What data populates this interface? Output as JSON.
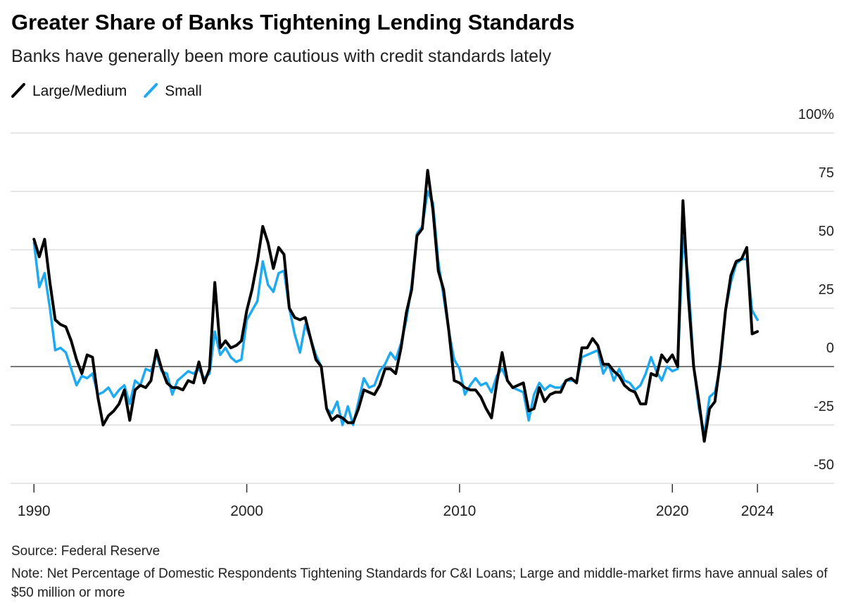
{
  "chart_data": {
    "type": "line",
    "title": "Greater Share of Banks Tightening Lending Standards",
    "subtitle": "Banks have generally been more cautious with credit standards lately",
    "source": "Source: Federal Reserve",
    "note": "Note: Net Percentage of Domestic Respondents Tightening Standards for C&I Loans; Large and middle-market firms have annual sales of $50 million or more",
    "x": [
      1990,
      1990.25,
      1990.5,
      1990.75,
      1991,
      1991.25,
      1991.5,
      1991.75,
      1992,
      1992.25,
      1992.5,
      1992.75,
      1993,
      1993.25,
      1993.5,
      1993.75,
      1994,
      1994.25,
      1994.5,
      1994.75,
      1995,
      1995.25,
      1995.5,
      1995.75,
      1996,
      1996.25,
      1996.5,
      1996.75,
      1997,
      1997.25,
      1997.5,
      1997.75,
      1998,
      1998.25,
      1998.5,
      1998.75,
      1999,
      1999.25,
      1999.5,
      1999.75,
      2000,
      2000.25,
      2000.5,
      2000.75,
      2001,
      2001.25,
      2001.5,
      2001.75,
      2002,
      2002.25,
      2002.5,
      2002.75,
      2003,
      2003.25,
      2003.5,
      2003.75,
      2004,
      2004.25,
      2004.5,
      2004.75,
      2005,
      2005.25,
      2005.5,
      2005.75,
      2006,
      2006.25,
      2006.5,
      2006.75,
      2007,
      2007.25,
      2007.5,
      2007.75,
      2008,
      2008.25,
      2008.5,
      2008.75,
      2009,
      2009.25,
      2009.5,
      2009.75,
      2010,
      2010.25,
      2010.5,
      2010.75,
      2011,
      2011.25,
      2011.5,
      2011.75,
      2012,
      2012.25,
      2012.5,
      2012.75,
      2013,
      2013.25,
      2013.5,
      2013.75,
      2014,
      2014.25,
      2014.5,
      2014.75,
      2015,
      2015.25,
      2015.5,
      2015.75,
      2016,
      2016.25,
      2016.5,
      2016.75,
      2017,
      2017.25,
      2017.5,
      2017.75,
      2018,
      2018.25,
      2018.5,
      2018.75,
      2019,
      2019.25,
      2019.5,
      2019.75,
      2020,
      2020.25,
      2020.5,
      2020.75,
      2021,
      2021.25,
      2021.5,
      2021.75,
      2022,
      2022.25,
      2022.5,
      2022.75,
      2023,
      2023.25,
      2023.5,
      2023.75,
      2024
    ],
    "series": [
      {
        "name": "Small",
        "color": "#1eaaf1",
        "values": [
          53,
          34,
          40,
          25,
          7,
          8,
          6,
          -1,
          -8,
          -4,
          -5,
          -3,
          -12,
          -11,
          -9,
          -13,
          -10,
          -8,
          -16,
          -6,
          -8,
          -1,
          -2,
          5,
          -2,
          -3,
          -12,
          -6,
          -4,
          -2,
          -3,
          -1,
          -5,
          -3,
          15,
          5,
          8,
          4,
          2,
          3,
          20,
          24,
          28,
          45,
          35,
          32,
          40,
          41,
          25,
          14,
          6,
          18,
          12,
          5,
          0,
          -18,
          -20,
          -15,
          -25,
          -17,
          -25,
          -15,
          -5,
          -9,
          -8,
          -2,
          1,
          6,
          3,
          10,
          20,
          35,
          57,
          60,
          75,
          70,
          45,
          30,
          15,
          3,
          -1,
          -12,
          -8,
          -5,
          -8,
          -7,
          -11,
          -4,
          -1,
          -6,
          -9,
          -10,
          -11,
          -23,
          -12,
          -7,
          -10,
          -8,
          -9,
          -9,
          -6,
          -6,
          -6,
          4,
          5,
          6,
          7,
          -3,
          1,
          -6,
          -1,
          -6,
          -7,
          -10,
          -8,
          -3,
          4,
          -2,
          -6,
          0,
          -2,
          -1,
          55,
          38,
          0,
          -18,
          -29,
          -13,
          -11,
          0,
          24,
          36,
          44,
          46,
          46,
          24,
          20
        ]
      },
      {
        "name": "Large/Medium",
        "color": "#000000",
        "values": [
          54.5,
          47,
          54.5,
          36,
          20,
          18,
          17,
          11,
          3,
          -3,
          5,
          4,
          -13,
          -25,
          -21,
          -19,
          -16,
          -10,
          -23,
          -10,
          -8,
          -9,
          -6,
          7,
          -1,
          -7,
          -9,
          -9,
          -10,
          -6,
          -7,
          2,
          -7,
          -1,
          36,
          8,
          11,
          8,
          9,
          11,
          24,
          33,
          45,
          60,
          53,
          42,
          51,
          48,
          25,
          21,
          20,
          21,
          12,
          3,
          0,
          -18,
          -23,
          -21,
          -22,
          -24,
          -24,
          -18,
          -10,
          -11,
          -12,
          -8,
          -1,
          -1,
          -3,
          8,
          23,
          33,
          56,
          59,
          84,
          67,
          41,
          33,
          15,
          -6,
          -7,
          -9,
          -10,
          -10,
          -13,
          -18,
          -22,
          -7,
          6,
          -6,
          -9,
          -8,
          -7,
          -19,
          -18,
          -9,
          -15,
          -12,
          -11,
          -11,
          -6,
          -5,
          -7,
          8,
          8,
          12,
          9,
          1,
          1,
          -2,
          -4,
          -8,
          -10,
          -11,
          -16,
          -16,
          -3,
          -4,
          5,
          2,
          5,
          0,
          71,
          30,
          0,
          -15,
          -32,
          -18,
          -15,
          2,
          24,
          39,
          45,
          46,
          51,
          14,
          15
        ]
      }
    ],
    "legend_order": [
      "Large/Medium",
      "Small"
    ],
    "xlim": [
      1988.9,
      2027.6
    ],
    "xticks": [
      1990,
      2000,
      2010,
      2020,
      2024
    ],
    "ylim": [
      -50,
      100
    ],
    "yticks": [
      -50,
      -25,
      0,
      25,
      50,
      75,
      {
        "value": 100,
        "label": "100%"
      }
    ],
    "grid": true
  }
}
